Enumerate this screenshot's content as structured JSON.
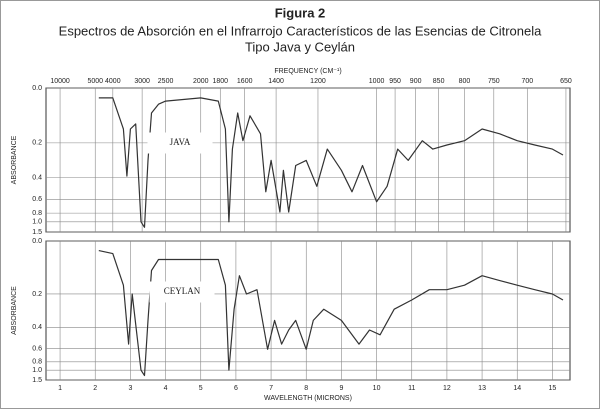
{
  "figure": {
    "label": "Figura 2",
    "title": "Espectros de Absorción en el Infrarrojo Característicos de las Esencias de Citronela",
    "subtitle": "Tipo Java y Ceylán"
  },
  "chart_data": [
    {
      "type": "line",
      "y_scale": "transmittance",
      "grid": true,
      "x2_label": "FREQUENCY (CM⁻¹)",
      "ylabel": "ABSORBANCE",
      "xlim": [
        0.6,
        15.5
      ],
      "ylim": [
        0,
        1.5
      ],
      "x2ticks": [
        10000,
        5000,
        4000,
        3000,
        2500,
        2000,
        1800,
        1600,
        1400,
        1200,
        1000,
        950,
        900,
        850,
        800,
        750,
        700,
        650
      ],
      "yticks": [
        {
          "value": 0,
          "label": "0.0"
        },
        0.2,
        0.4,
        0.6,
        0.8,
        {
          "value": 1,
          "label": "1.0"
        },
        1.5
      ],
      "x": [
        2.1,
        2.5,
        2.8,
        2.9,
        3.0,
        3.15,
        3.3,
        3.4,
        3.5,
        3.6,
        3.8,
        4.0,
        5.0,
        5.5,
        5.7,
        5.8,
        5.9,
        6.05,
        6.2,
        6.4,
        6.7,
        6.85,
        7.0,
        7.25,
        7.35,
        7.5,
        7.7,
        8.0,
        8.3,
        8.6,
        9.0,
        9.3,
        9.6,
        10.0,
        10.3,
        10.6,
        10.9,
        11.3,
        11.6,
        12.0,
        12.5,
        13.0,
        13.5,
        14.0,
        14.5,
        15.0,
        15.3
      ],
      "series": [
        {
          "name": "JAVA",
          "color": "#333333",
          "values": [
            0.03,
            0.03,
            0.14,
            0.39,
            0.14,
            0.12,
            1.0,
            1.2,
            0.29,
            0.08,
            0.05,
            0.04,
            0.03,
            0.04,
            0.14,
            1.0,
            0.23,
            0.08,
            0.19,
            0.09,
            0.16,
            0.52,
            0.29,
            0.78,
            0.35,
            0.78,
            0.32,
            0.29,
            0.47,
            0.23,
            0.35,
            0.52,
            0.32,
            0.63,
            0.47,
            0.23,
            0.29,
            0.19,
            0.23,
            0.21,
            0.19,
            0.14,
            0.16,
            0.19,
            0.21,
            0.23,
            0.26
          ]
        }
      ]
    },
    {
      "type": "line",
      "y_scale": "transmittance",
      "grid": true,
      "xlabel": "WAVELENGTH (MICRONS)",
      "ylabel": "ABSORBANCE",
      "xlim": [
        0.6,
        15.5
      ],
      "ylim": [
        0,
        1.5
      ],
      "xticks": [
        1,
        2,
        3,
        4,
        5,
        6,
        7,
        8,
        9,
        10,
        11,
        12,
        13,
        14,
        15
      ],
      "yticks": [
        {
          "value": 0,
          "label": "0.0"
        },
        0.2,
        0.4,
        0.6,
        0.8,
        {
          "value": 1,
          "label": "1.0"
        },
        1.5
      ],
      "x": [
        2.1,
        2.5,
        2.8,
        2.95,
        3.05,
        3.3,
        3.4,
        3.5,
        3.6,
        3.8,
        4.5,
        5.5,
        5.7,
        5.8,
        5.95,
        6.1,
        6.3,
        6.6,
        6.9,
        7.1,
        7.3,
        7.5,
        7.7,
        8.0,
        8.2,
        8.5,
        9.0,
        9.5,
        9.8,
        10.1,
        10.5,
        11.0,
        11.5,
        12.0,
        12.5,
        13.0,
        13.5,
        14.0,
        14.5,
        15.0,
        15.3
      ],
      "series": [
        {
          "name": "CEYLAN",
          "color": "#333333",
          "values": [
            0.03,
            0.04,
            0.16,
            0.55,
            0.2,
            1.0,
            1.2,
            0.35,
            0.1,
            0.06,
            0.06,
            0.06,
            0.16,
            1.0,
            0.28,
            0.12,
            0.2,
            0.18,
            0.61,
            0.35,
            0.55,
            0.42,
            0.35,
            0.61,
            0.35,
            0.28,
            0.35,
            0.55,
            0.42,
            0.46,
            0.28,
            0.23,
            0.18,
            0.18,
            0.16,
            0.12,
            0.14,
            0.16,
            0.18,
            0.2,
            0.23
          ]
        }
      ]
    }
  ]
}
